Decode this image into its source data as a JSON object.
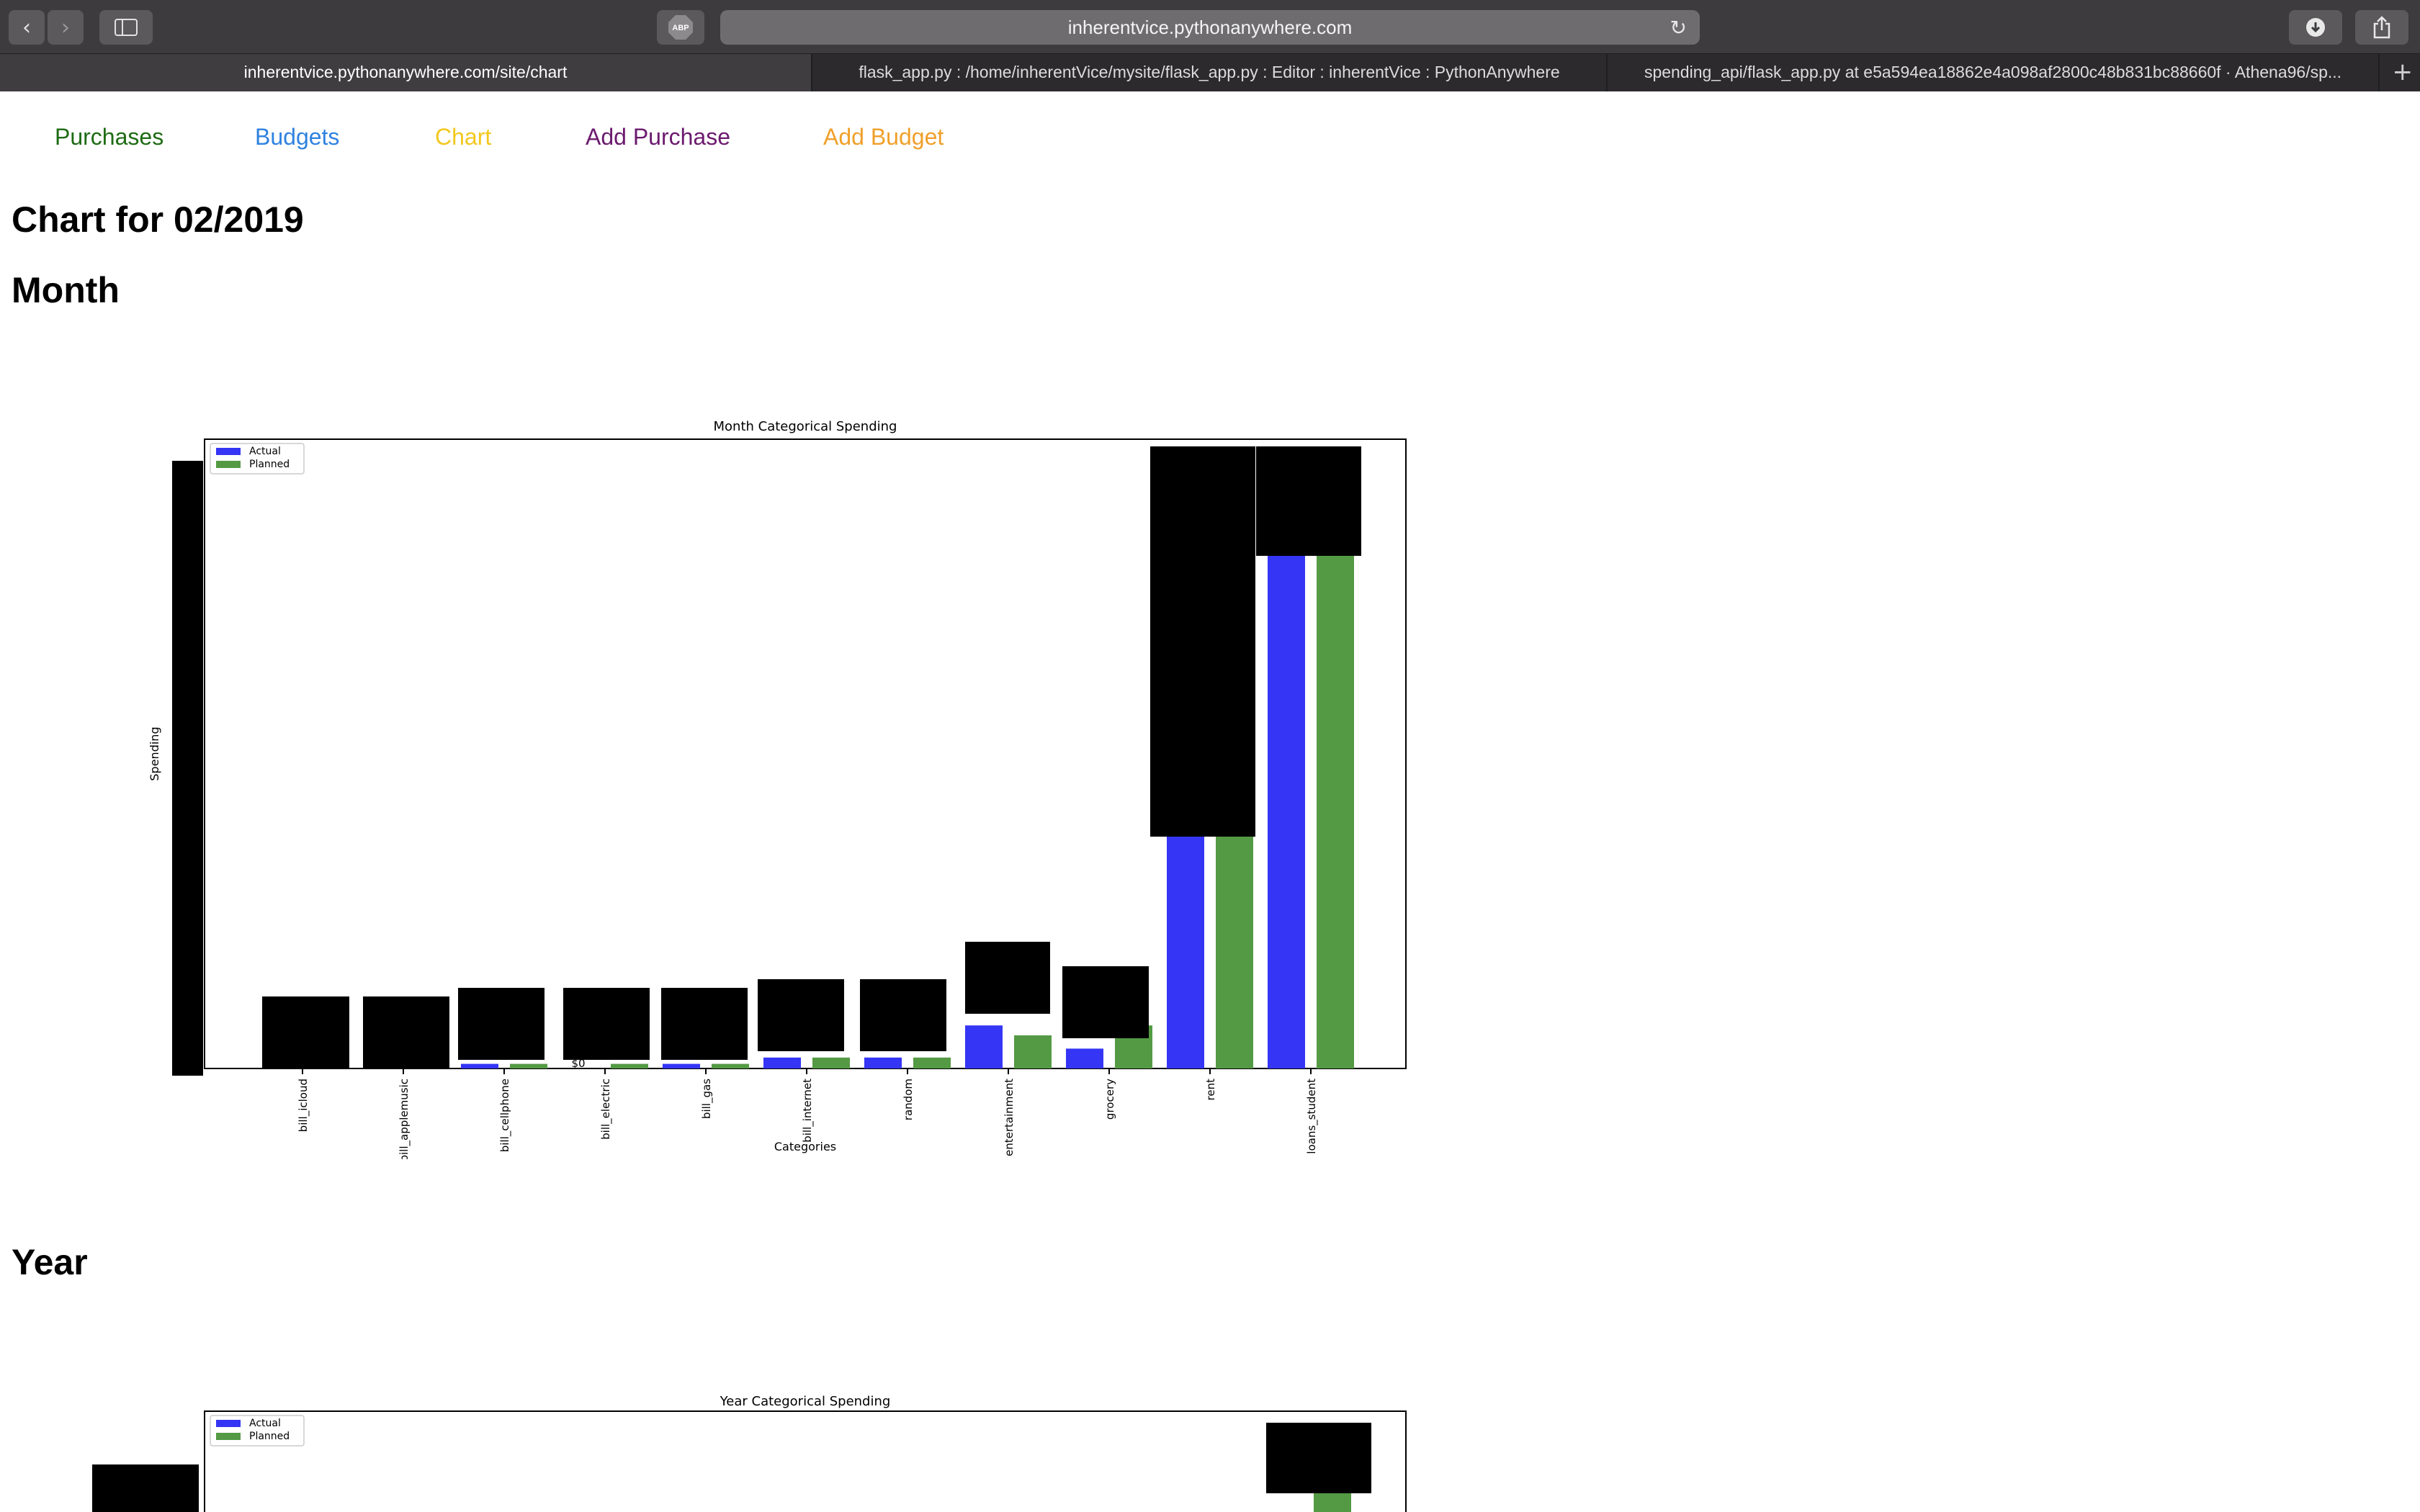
{
  "browser": {
    "address": "inherentvice.pythonanywhere.com",
    "tabs": [
      "inherentvice.pythonanywhere.com/site/chart",
      "flask_app.py : /home/inherentVice/mysite/flask_app.py : Editor : inherentVice : PythonAnywhere",
      "spending_api/flask_app.py at e5a594ea18862e4a098af2800c48b831bc88660f · Athena96/sp..."
    ],
    "abp_label": "ABP",
    "icons": [
      "back-icon",
      "forward-icon",
      "sidebar-icon",
      "adblock-icon",
      "reload-icon",
      "download-icon",
      "share-icon",
      "plus-icon"
    ]
  },
  "nav": {
    "links": [
      {
        "label": "Purchases",
        "color": "#1e6b14"
      },
      {
        "label": "Budgets",
        "color": "#2f82e0"
      },
      {
        "label": "Chart",
        "color": "#f2c81d"
      },
      {
        "label": "Add Purchase",
        "color": "#6b1a6e"
      },
      {
        "label": "Add Budget",
        "color": "#f0a02a"
      }
    ]
  },
  "page": {
    "title": "Chart for 02/2019",
    "month_heading": "Month",
    "year_heading": "Year"
  },
  "chart_data": [
    {
      "type": "bar",
      "title": "Month Categorical Spending",
      "xlabel": "Categories",
      "ylabel": "Spending",
      "legend_position": "top-left",
      "categories": [
        "bill_icloud",
        "bill_applemusic",
        "bill_cellphone",
        "bill_electric",
        "bill_gas",
        "bill_internet",
        "random",
        "entertainment",
        "grocery",
        "rent",
        "loans_student"
      ],
      "series": [
        {
          "name": "Actual",
          "color": "#3535f5",
          "values": [
            0,
            0,
            14,
            0,
            14,
            33,
            33,
            130,
            60,
            1370,
            1570
          ]
        },
        {
          "name": "Planned",
          "color": "#549a44",
          "values": [
            0,
            0,
            14,
            14,
            14,
            33,
            33,
            100,
            130,
            1370,
            1570
          ]
        }
      ],
      "ylim": [
        0,
        1900
      ],
      "annotations": [
        "$0"
      ]
    },
    {
      "type": "bar",
      "title": "Year Categorical Spending",
      "legend_position": "top-left",
      "series": [
        {
          "name": "Actual",
          "color": "#3535f5"
        },
        {
          "name": "Planned",
          "color": "#549a44"
        }
      ]
    }
  ]
}
